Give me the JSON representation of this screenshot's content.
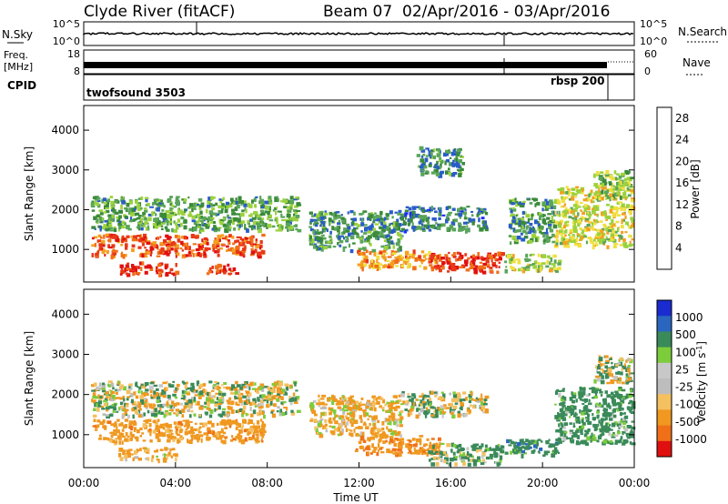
{
  "header": {
    "station": "Clyde River (fitACF)",
    "beam": "Beam 07",
    "dates": "02/Apr/2016 - 03/Apr/2016"
  },
  "strip_panels": {
    "nsky": {
      "label": "N.Sky",
      "right_label": "N.Search",
      "ticks_left": [
        "10^5",
        "10^0"
      ],
      "ticks_right": [
        "10^5",
        "10^0"
      ]
    },
    "freq": {
      "label_lines": [
        "Freq.",
        "[MHz]"
      ],
      "right_label": "Nave",
      "ticks_left": [
        "18",
        "8"
      ],
      "ticks_right": [
        "60",
        "0"
      ]
    },
    "cpid": {
      "label": "CPID",
      "segments": [
        "twofsound 3503",
        "rbsp 200"
      ]
    }
  },
  "colors": {
    "power": [
      "#1a2bff",
      "#2a5cc8",
      "#3a8a3a",
      "#5aa55a",
      "#9bd23c",
      "#f0e040",
      "#f4a020",
      "#f07018",
      "#e83818",
      "#e01010"
    ],
    "velocity": [
      "#e01010",
      "#f07018",
      "#f09820",
      "#f4c060",
      "#bdbdbd",
      "#c8c8c8",
      "#7ccc3c",
      "#3a8a5a",
      "#2a66c0",
      "#1a2bd0"
    ]
  },
  "chart_data": [
    {
      "type": "heatmap",
      "title": "",
      "xlabel": "Time UT",
      "ylabel": "Slant Range [km]",
      "x_ticks": [
        "00:00",
        "04:00",
        "08:00",
        "12:00",
        "16:00",
        "20:00",
        "00:00"
      ],
      "x_range_hours": [
        0,
        24
      ],
      "y_ticks": [
        1000,
        2000,
        3000,
        4000
      ],
      "ylim": [
        180,
        4620
      ],
      "colorbar": {
        "label": "Power [dB]",
        "range": [
          0,
          30
        ],
        "tick_labels": [
          "4",
          "8",
          "12",
          "16",
          "20",
          "24",
          "28"
        ],
        "tick_values": [
          4,
          8,
          12,
          16,
          20,
          24,
          28
        ]
      },
      "regions": [
        {
          "t": [
            0.3,
            9.3
          ],
          "r": [
            1500,
            2350
          ],
          "level": 10
        },
        {
          "t": [
            0.3,
            7.8
          ],
          "r": [
            850,
            1400
          ],
          "level": 24
        },
        {
          "t": [
            1.5,
            4.0
          ],
          "r": [
            400,
            700
          ],
          "level": 27
        },
        {
          "t": [
            5.3,
            6.6
          ],
          "r": [
            400,
            650
          ],
          "level": 26
        },
        {
          "t": [
            9.8,
            13.8
          ],
          "r": [
            1000,
            2000
          ],
          "level": 8
        },
        {
          "t": [
            11.8,
            15.5
          ],
          "r": [
            550,
            1000
          ],
          "level": 20
        },
        {
          "t": [
            15.0,
            18.2
          ],
          "r": [
            450,
            950
          ],
          "level": 26
        },
        {
          "t": [
            13.8,
            17.5
          ],
          "r": [
            1500,
            2100
          ],
          "level": 7
        },
        {
          "t": [
            18.3,
            20.7
          ],
          "r": [
            500,
            900
          ],
          "level": 14
        },
        {
          "t": [
            18.5,
            20.5
          ],
          "r": [
            1200,
            2300
          ],
          "level": 9
        },
        {
          "t": [
            20.5,
            23.9
          ],
          "r": [
            1100,
            2600
          ],
          "level": 16
        },
        {
          "t": [
            22.2,
            23.8
          ],
          "r": [
            2300,
            3000
          ],
          "level": 12
        },
        {
          "t": [
            14.5,
            16.5
          ],
          "r": [
            2900,
            3600
          ],
          "level": 8
        }
      ]
    },
    {
      "type": "heatmap",
      "title": "",
      "xlabel": "Time UT",
      "ylabel": "Slant Range [km]",
      "x_ticks": [
        "00:00",
        "04:00",
        "08:00",
        "12:00",
        "16:00",
        "20:00",
        "00:00"
      ],
      "x_range_hours": [
        0,
        24
      ],
      "y_ticks": [
        1000,
        2000,
        3000,
        4000
      ],
      "ylim": [
        180,
        4620
      ],
      "colorbar": {
        "label": "Velocity [m s",
        "label_superscript": "-1",
        "label_close": "]",
        "tick_labels": [
          "1000",
          "500",
          "100",
          "25",
          "-25",
          "-100",
          "-500",
          "-1000"
        ]
      },
      "regions": [
        {
          "t": [
            0.3,
            9.3
          ],
          "r": [
            1500,
            2350
          ],
          "v": 0
        },
        {
          "t": [
            0.3,
            7.8
          ],
          "r": [
            850,
            1400
          ],
          "v": -300
        },
        {
          "t": [
            1.5,
            4.0
          ],
          "r": [
            400,
            700
          ],
          "v": -200
        },
        {
          "t": [
            9.8,
            13.8
          ],
          "r": [
            1000,
            2000
          ],
          "v": -150
        },
        {
          "t": [
            11.8,
            15.5
          ],
          "r": [
            550,
            1000
          ],
          "v": -400
        },
        {
          "t": [
            15.0,
            18.2
          ],
          "r": [
            300,
            800
          ],
          "v": 150
        },
        {
          "t": [
            13.8,
            17.5
          ],
          "r": [
            1500,
            2100
          ],
          "v": 10
        },
        {
          "t": [
            18.3,
            20.7
          ],
          "r": [
            500,
            900
          ],
          "v": 300
        },
        {
          "t": [
            20.5,
            23.9
          ],
          "r": [
            800,
            2200
          ],
          "v": 250
        },
        {
          "t": [
            22.2,
            23.8
          ],
          "r": [
            2300,
            3000
          ],
          "v": 15
        }
      ]
    }
  ]
}
